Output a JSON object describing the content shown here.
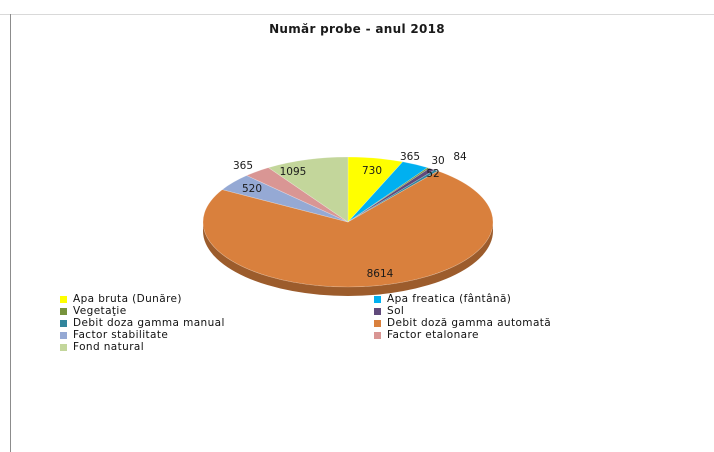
{
  "chart_data": {
    "type": "pie",
    "title": "Număr probe - anul 2018",
    "slices": [
      {
        "label": "Apa bruta (Dunăre)",
        "value": 730,
        "color": "#ffff00",
        "value_label": "730"
      },
      {
        "label": "Apa freatica (fântână)",
        "value": 365,
        "color": "#00b0f0",
        "value_label": "365"
      },
      {
        "label": "Vegetaţie",
        "value": 30,
        "color": "#77933c",
        "value_label": "30"
      },
      {
        "label": "Sol",
        "value": 84,
        "color": "#604a7b",
        "value_label": "84"
      },
      {
        "label": "Debit  doza gamma manual",
        "value": 52,
        "color": "#31859c",
        "value_label": "52"
      },
      {
        "label": "Debit doză gamma automată",
        "value": 8614,
        "color": "#d9803d",
        "value_label": "8614"
      },
      {
        "label": "Factor stabilitate",
        "value": 520,
        "color": "#95a9d4",
        "value_label": "520"
      },
      {
        "label": "Factor etalonare",
        "value": 365,
        "color": "#d99694",
        "value_label": "365"
      },
      {
        "label": "Fond natural",
        "value": 1095,
        "color": "#c3d69b",
        "value_label": "1095"
      }
    ],
    "legend_position": "bottom"
  }
}
